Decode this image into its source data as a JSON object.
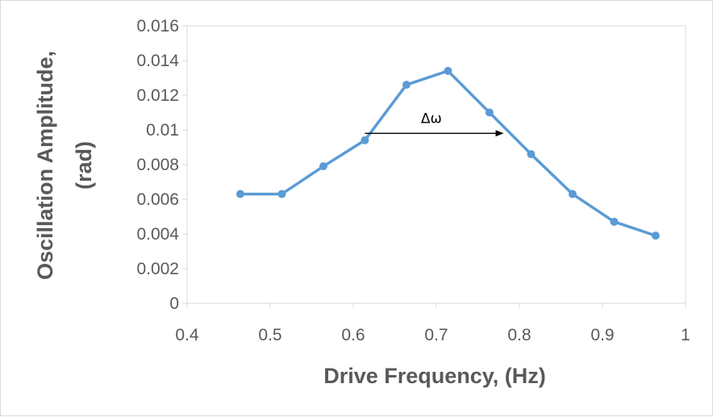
{
  "chart_data": {
    "type": "line",
    "title": "",
    "xlabel": "Drive Frequency, (Hz)",
    "ylabel_lines": [
      "Oscillation Amplitude,",
      "(rad)"
    ],
    "xlim": [
      0.4,
      1.0
    ],
    "ylim": [
      0,
      0.016
    ],
    "x_ticks": [
      0.4,
      0.5,
      0.6,
      0.7,
      0.8,
      0.9,
      1.0
    ],
    "x_tick_labels": [
      "0.4",
      "0.5",
      "0.6",
      "0.7",
      "0.8",
      "0.9",
      "1"
    ],
    "y_ticks": [
      0,
      0.002,
      0.004,
      0.006,
      0.008,
      0.01,
      0.012,
      0.014,
      0.016
    ],
    "y_tick_labels": [
      "0",
      "0.002",
      "0.004",
      "0.006",
      "0.008",
      "0.01",
      "0.012",
      "0.014",
      "0.016"
    ],
    "grid": false,
    "legend": "none",
    "series": [
      {
        "color": "#5b9bd5",
        "x": [
          0.464,
          0.514,
          0.564,
          0.614,
          0.664,
          0.714,
          0.764,
          0.814,
          0.864,
          0.914,
          0.964
        ],
        "y": [
          0.0063,
          0.0063,
          0.0079,
          0.0094,
          0.0126,
          0.0134,
          0.011,
          0.0086,
          0.0063,
          0.0047,
          0.0039
        ]
      }
    ],
    "annotations": [
      {
        "text": "Δω",
        "arrow_from": [
          0.614,
          0.0098
        ],
        "arrow_to": [
          0.78,
          0.0098
        ],
        "text_at": [
          0.694,
          0.0104
        ],
        "color": "#000000"
      }
    ]
  }
}
